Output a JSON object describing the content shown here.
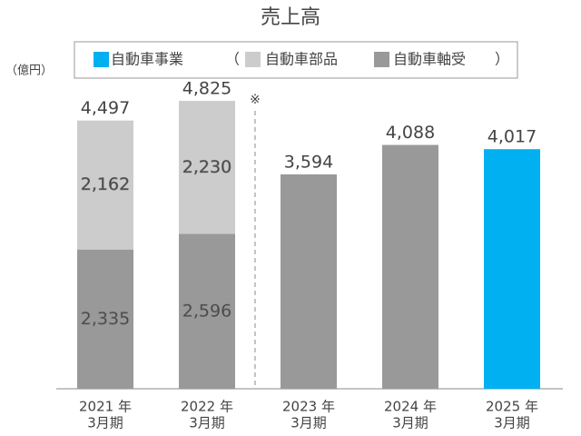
{
  "chart_data": {
    "type": "stacked-bar",
    "title": "売上高",
    "unit_label": "（億円）",
    "legend_open": "（",
    "legend_close": "）",
    "note_mark": "※",
    "categories": [
      [
        "2021 年",
        "3月期"
      ],
      [
        "2022 年",
        "3月期"
      ],
      [
        "2023 年",
        "3月期"
      ],
      [
        "2024 年",
        "3月期"
      ],
      [
        "2025 年",
        "3月期"
      ]
    ],
    "series": [
      {
        "name": "自動車事業",
        "color": "#00b0f0",
        "values": [
          null,
          null,
          null,
          null,
          4017
        ],
        "value_labels": [
          null,
          null,
          null,
          null,
          "4,017"
        ]
      },
      {
        "name": "自動車部品",
        "color": "#cccccc",
        "values": [
          2162,
          2230,
          null,
          null,
          null
        ],
        "value_labels": [
          "2,162",
          "2,230",
          null,
          null,
          null
        ]
      },
      {
        "name": "自動車軸受",
        "color": "#999999",
        "values": [
          2335,
          2596,
          3594,
          4088,
          null
        ],
        "value_labels": [
          "2,335",
          "2,596",
          "3,594",
          "4,088",
          null
        ]
      }
    ],
    "totals": [
      4497,
      4825,
      null,
      null,
      null
    ],
    "total_labels": [
      "4,497",
      "4,825",
      null,
      null,
      null
    ],
    "ylim": [
      0,
      6000
    ]
  }
}
